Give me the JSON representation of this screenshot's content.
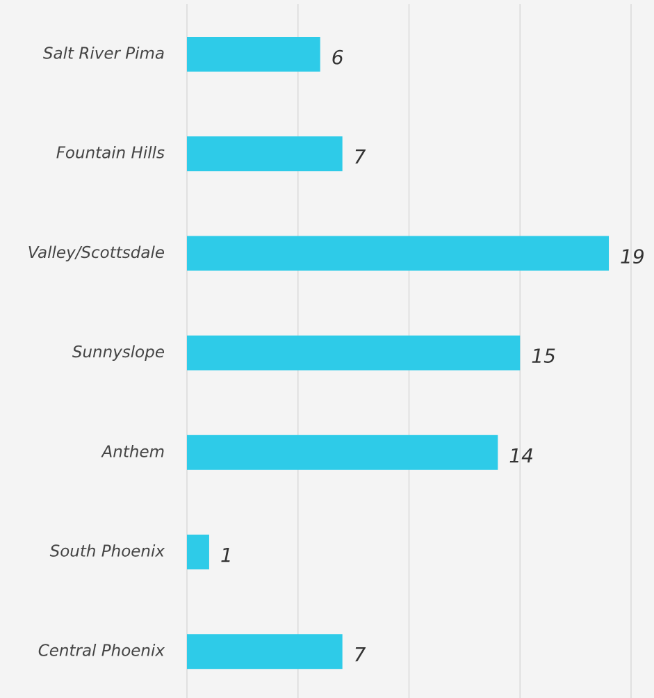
{
  "chart_data": {
    "type": "bar",
    "orientation": "horizontal",
    "categories": [
      "Salt River Pima",
      "Fountain Hills",
      "Valley/Scottsdale",
      "Sunnyslope",
      "Anthem",
      "South Phoenix",
      "Central Phoenix"
    ],
    "values": [
      6,
      7,
      19,
      15,
      14,
      1,
      7
    ],
    "color": "#2ecbe8",
    "xlim": [
      0,
      20
    ],
    "xticks": [
      0,
      5,
      10,
      15,
      20
    ],
    "grid": true
  }
}
